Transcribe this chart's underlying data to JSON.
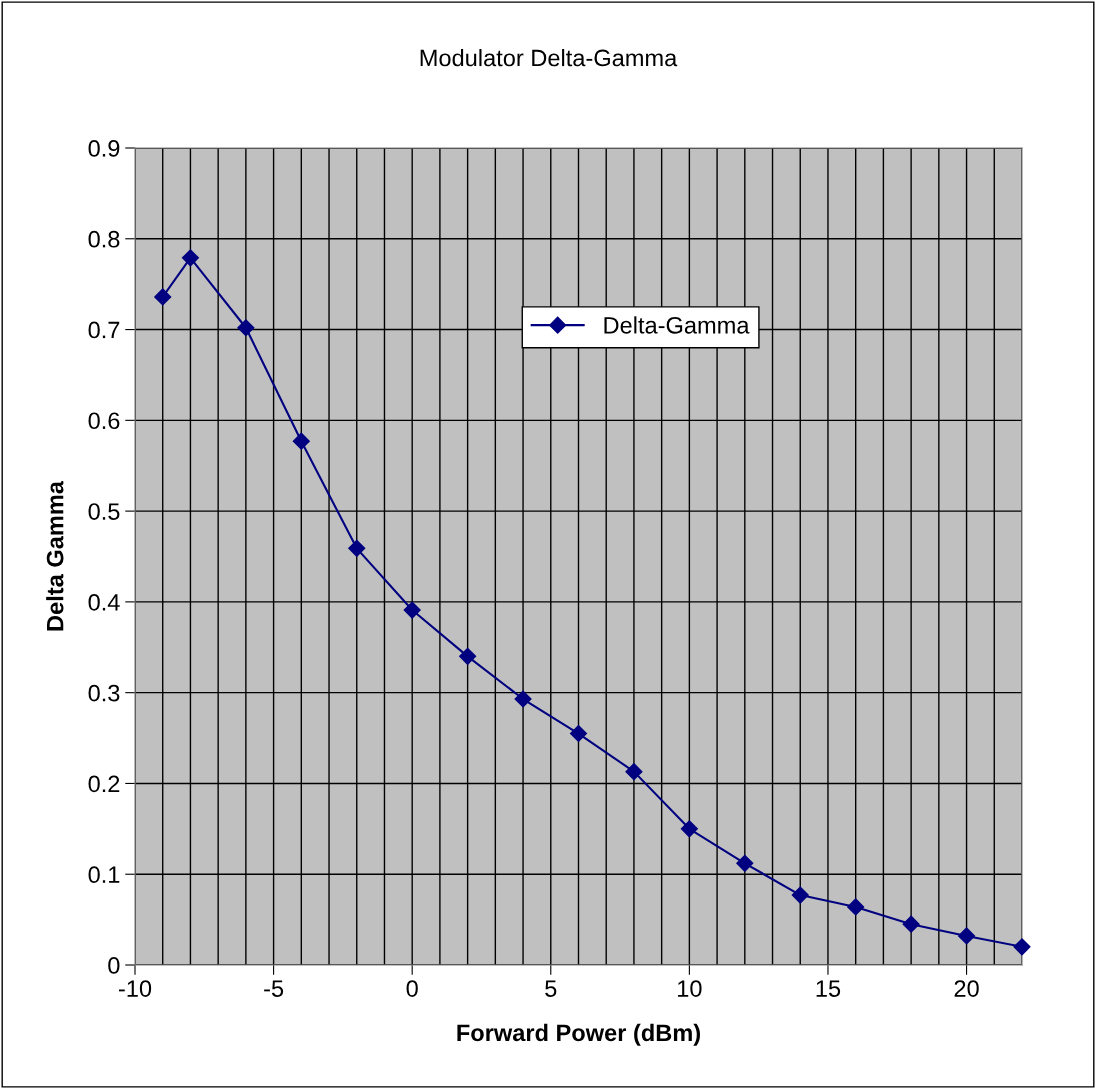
{
  "chart_data": {
    "type": "line",
    "title": "Modulator Delta-Gamma",
    "xlabel": "Forward Power (dBm)",
    "ylabel": "Delta Gamma",
    "x": [
      -9,
      -8,
      -6,
      -4,
      -2,
      0,
      2,
      4,
      6,
      8,
      10,
      12,
      14,
      16,
      18,
      20,
      22
    ],
    "series": [
      {
        "name": "Delta-Gamma",
        "color": "#000080",
        "values": [
          0.736,
          0.779,
          0.702,
          0.577,
          0.459,
          0.391,
          0.34,
          0.293,
          0.255,
          0.213,
          0.15,
          0.112,
          0.077,
          0.064,
          0.045,
          0.032,
          0.02
        ]
      }
    ],
    "xlim": [
      -10,
      22
    ],
    "ylim": [
      0,
      0.9
    ],
    "xticks": [
      -10,
      {
        "value": -9,
        "label": null
      },
      {
        "value": -8,
        "label": null
      },
      {
        "value": -7,
        "label": null
      },
      {
        "value": -6,
        "label": null
      },
      -5,
      {
        "value": -4,
        "label": null
      },
      {
        "value": -3,
        "label": null
      },
      {
        "value": -2,
        "label": null
      },
      {
        "value": -1,
        "label": null
      },
      0,
      {
        "value": 1,
        "label": null
      },
      {
        "value": 2,
        "label": null
      },
      {
        "value": 3,
        "label": null
      },
      {
        "value": 4,
        "label": null
      },
      5,
      {
        "value": 6,
        "label": null
      },
      {
        "value": 7,
        "label": null
      },
      {
        "value": 8,
        "label": null
      },
      {
        "value": 9,
        "label": null
      },
      10,
      {
        "value": 11,
        "label": null
      },
      {
        "value": 12,
        "label": null
      },
      {
        "value": 13,
        "label": null
      },
      {
        "value": 14,
        "label": null
      },
      15,
      {
        "value": 16,
        "label": null
      },
      {
        "value": 17,
        "label": null
      },
      {
        "value": 18,
        "label": null
      },
      {
        "value": 19,
        "label": null
      },
      20,
      {
        "value": 21,
        "label": null
      },
      {
        "value": 22,
        "label": null
      }
    ],
    "yticks": [
      0,
      0.1,
      0.2,
      0.3,
      0.4,
      0.5,
      0.6,
      0.7,
      0.8,
      0.9
    ],
    "grid": true,
    "legend": "top",
    "marker": "diamond",
    "line_style": "solid"
  }
}
